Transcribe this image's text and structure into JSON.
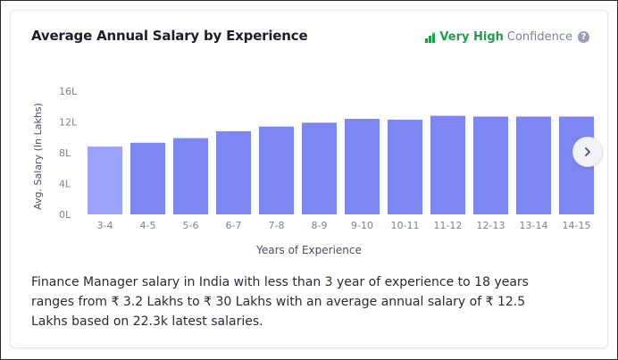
{
  "title": "Average Annual Salary by Experience",
  "confidence": {
    "level": "Very High",
    "word": "Confidence",
    "help_glyph": "?",
    "icon": "bar-signal-icon",
    "color": "#1f9d4c"
  },
  "chart_data": {
    "type": "bar",
    "ylabel": "Avg. Salary (In Lakhs)",
    "xlabel": "Years of Experience",
    "yticks": [
      "0L",
      "4L",
      "8L",
      "12L",
      "16L"
    ],
    "ylim": [
      0,
      16
    ],
    "categories": [
      "3-4",
      "4-5",
      "5-6",
      "6-7",
      "7-8",
      "8-9",
      "9-10",
      "10-11",
      "11-12",
      "12-13",
      "13-14",
      "14-15"
    ],
    "values": [
      8.8,
      9.3,
      9.9,
      10.8,
      11.4,
      11.9,
      12.4,
      12.3,
      12.8,
      12.7,
      12.7,
      12.7
    ],
    "highlight_index": 0,
    "bar_color": "#7d86f2",
    "highlight_color": "#9aa3fb",
    "grid": false
  },
  "next_button": {
    "icon": "chevron-right-icon"
  },
  "summary": "Finance Manager salary in India with less than 3 year of experience to 18 years ranges from ₹ 3.2 Lakhs to ₹ 30 Lakhs with an average annual salary of ₹ 12.5 Lakhs based on 22.3k latest salaries."
}
